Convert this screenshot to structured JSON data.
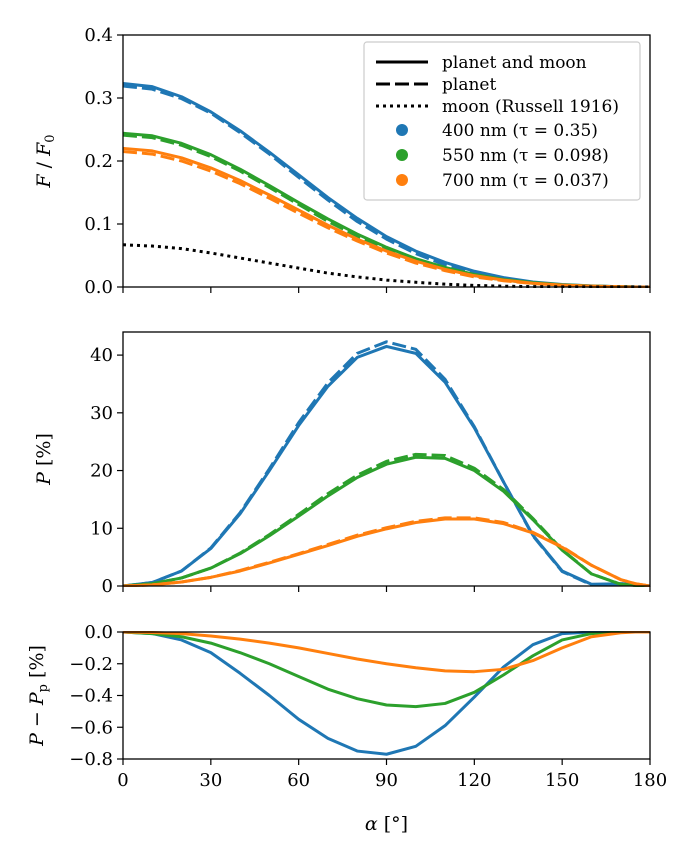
{
  "chart_data": {
    "type": "line",
    "x_axis": {
      "label": "α [°]",
      "lim": [
        0,
        180
      ],
      "ticks": [
        0,
        30,
        60,
        90,
        120,
        150,
        180
      ],
      "tick_labels": [
        "0",
        "30",
        "60",
        "90",
        "120",
        "150",
        "180"
      ]
    },
    "colors": {
      "400": "#1f77b4",
      "550": "#2ca02c",
      "700": "#ff7f0e",
      "moon": "#000000"
    },
    "legend": {
      "location": "top-right",
      "style_entries": [
        {
          "label": "planet and moon",
          "style": "solid"
        },
        {
          "label": "planet",
          "style": "dashed"
        },
        {
          "label": "moon (Russell 1916)",
          "style": "dotted"
        }
      ],
      "color_entries": [
        {
          "label": "400 nm (τ = 0.35)",
          "color": "#1f77b4"
        },
        {
          "label": "550 nm (τ = 0.098)",
          "color": "#2ca02c"
        },
        {
          "label": "700 nm (τ = 0.037)",
          "color": "#ff7f0e"
        }
      ]
    },
    "x": [
      0,
      10,
      20,
      30,
      40,
      50,
      60,
      70,
      80,
      90,
      100,
      110,
      120,
      130,
      140,
      150,
      160,
      170,
      175,
      180
    ],
    "panels": [
      {
        "name": "flux",
        "ylabel": "F / F0",
        "ylim": [
          0,
          0.4
        ],
        "yticks": [
          0.0,
          0.1,
          0.2,
          0.3,
          0.4
        ],
        "ytick_labels": [
          "0.0",
          "0.1",
          "0.2",
          "0.3",
          "0.4"
        ],
        "series": [
          {
            "name": "400 nm planet and moon",
            "color": "400",
            "style": "solid",
            "values": [
              0.323,
              0.318,
              0.302,
              0.278,
              0.248,
              0.214,
              0.178,
              0.142,
              0.109,
              0.08,
              0.057,
              0.039,
              0.025,
              0.015,
              0.008,
              0.004,
              0.0018,
              0.0005,
              0.0002,
              0.0
            ]
          },
          {
            "name": "400 nm planet",
            "color": "400",
            "style": "dashed",
            "values": [
              0.319,
              0.314,
              0.299,
              0.276,
              0.245,
              0.211,
              0.174,
              0.138,
              0.104,
              0.076,
              0.053,
              0.035,
              0.022,
              0.013,
              0.007,
              0.003,
              0.0013,
              0.0004,
              0.0001,
              0.0
            ]
          },
          {
            "name": "550 nm planet and moon",
            "color": "550",
            "style": "solid",
            "values": [
              0.244,
              0.24,
              0.228,
              0.21,
              0.187,
              0.161,
              0.134,
              0.108,
              0.084,
              0.063,
              0.045,
              0.031,
              0.02,
              0.012,
              0.007,
              0.0035,
              0.0015,
              0.0004,
              0.0001,
              0.0
            ]
          },
          {
            "name": "550 nm planet",
            "color": "550",
            "style": "dashed",
            "values": [
              0.241,
              0.237,
              0.225,
              0.207,
              0.184,
              0.158,
              0.131,
              0.104,
              0.081,
              0.06,
              0.043,
              0.029,
              0.018,
              0.011,
              0.006,
              0.003,
              0.0012,
              0.0003,
              0.0001,
              0.0
            ]
          },
          {
            "name": "700 nm planet and moon",
            "color": "700",
            "style": "solid",
            "values": [
              0.22,
              0.216,
              0.205,
              0.189,
              0.169,
              0.146,
              0.122,
              0.098,
              0.076,
              0.057,
              0.041,
              0.028,
              0.018,
              0.011,
              0.006,
              0.003,
              0.0013,
              0.0004,
              0.0001,
              0.0
            ]
          },
          {
            "name": "700 nm planet",
            "color": "700",
            "style": "dashed",
            "values": [
              0.215,
              0.211,
              0.2,
              0.184,
              0.164,
              0.141,
              0.117,
              0.094,
              0.073,
              0.054,
              0.038,
              0.026,
              0.016,
              0.01,
              0.0055,
              0.0027,
              0.0011,
              0.0003,
              0.0001,
              0.0
            ]
          },
          {
            "name": "moon (Russell 1916)",
            "color": "moon",
            "style": "dotted",
            "values": [
              0.067,
              0.065,
              0.061,
              0.054,
              0.046,
              0.038,
              0.03,
              0.022,
              0.016,
              0.011,
              0.0075,
              0.0045,
              0.0025,
              0.0013,
              0.0006,
              0.0002,
              0.0001,
              0.0,
              0.0,
              0.0
            ]
          }
        ]
      },
      {
        "name": "polarization",
        "ylabel": "P [%]",
        "ylim": [
          0,
          44
        ],
        "yticks": [
          0,
          10,
          20,
          30,
          40
        ],
        "ytick_labels": [
          "0",
          "10",
          "20",
          "30",
          "40"
        ],
        "series": [
          {
            "name": "400 nm planet and moon",
            "color": "400",
            "style": "solid",
            "values": [
              0.0,
              0.6,
              2.6,
              6.5,
              12.5,
              20.0,
              27.8,
              34.6,
              39.6,
              41.5,
              40.3,
              35.3,
              27.4,
              18.0,
              8.8,
              2.6,
              0.3,
              0.4,
              0.3,
              0.0
            ]
          },
          {
            "name": "400 nm planet",
            "color": "400",
            "style": "dashed",
            "values": [
              0.0,
              0.6,
              2.6,
              6.6,
              12.7,
              20.3,
              28.3,
              35.2,
              40.3,
              42.3,
              41.0,
              35.8,
              27.6,
              18.0,
              8.7,
              2.5,
              0.2,
              0.4,
              0.3,
              0.0
            ]
          },
          {
            "name": "550 nm planet and moon",
            "color": "550",
            "style": "solid",
            "values": [
              0.0,
              0.4,
              1.4,
              3.1,
              5.6,
              8.7,
              12.1,
              15.6,
              18.8,
              21.1,
              22.3,
              22.1,
              20.0,
              16.4,
              11.5,
              6.2,
              2.1,
              0.3,
              0.1,
              0.0
            ]
          },
          {
            "name": "550 nm planet",
            "color": "550",
            "style": "dashed",
            "values": [
              0.0,
              0.4,
              1.4,
              3.1,
              5.7,
              8.9,
              12.4,
              16.0,
              19.2,
              21.6,
              22.8,
              22.6,
              20.4,
              16.7,
              11.7,
              6.3,
              2.1,
              0.3,
              0.1,
              0.0
            ]
          },
          {
            "name": "700 nm planet and moon",
            "color": "700",
            "style": "solid",
            "values": [
              0.0,
              0.2,
              0.7,
              1.5,
              2.6,
              4.0,
              5.5,
              7.0,
              8.6,
              9.9,
              11.0,
              11.6,
              11.6,
              10.8,
              9.2,
              6.7,
              3.6,
              1.1,
              0.4,
              0.0
            ]
          },
          {
            "name": "700 nm planet",
            "color": "700",
            "style": "dashed",
            "values": [
              0.0,
              0.2,
              0.7,
              1.5,
              2.7,
              4.1,
              5.6,
              7.2,
              8.8,
              10.1,
              11.2,
              11.8,
              11.8,
              11.0,
              9.3,
              6.8,
              3.6,
              1.1,
              0.4,
              0.0
            ]
          }
        ]
      },
      {
        "name": "difference",
        "ylabel": "P − Pp [%]",
        "ylim": [
          -0.8,
          0.0
        ],
        "yticks": [
          -0.8,
          -0.6,
          -0.4,
          -0.2,
          0.0
        ],
        "ytick_labels": [
          "−0.8",
          "−0.6",
          "−0.4",
          "−0.2",
          "0.0"
        ],
        "series": [
          {
            "name": "400 nm difference",
            "color": "400",
            "style": "solid",
            "values": [
              0.0,
              -0.01,
              -0.05,
              -0.13,
              -0.26,
              -0.4,
              -0.55,
              -0.67,
              -0.75,
              -0.77,
              -0.72,
              -0.59,
              -0.41,
              -0.22,
              -0.08,
              -0.01,
              0.0,
              0.0,
              0.0,
              0.0
            ]
          },
          {
            "name": "550 nm difference",
            "color": "550",
            "style": "solid",
            "values": [
              0.0,
              -0.01,
              -0.03,
              -0.07,
              -0.13,
              -0.2,
              -0.28,
              -0.36,
              -0.42,
              -0.46,
              -0.47,
              -0.45,
              -0.38,
              -0.27,
              -0.15,
              -0.05,
              -0.01,
              0.0,
              0.0,
              0.0
            ]
          },
          {
            "name": "700 nm difference",
            "color": "700",
            "style": "solid",
            "values": [
              0.0,
              -0.003,
              -0.01,
              -0.025,
              -0.045,
              -0.07,
              -0.1,
              -0.135,
              -0.17,
              -0.2,
              -0.225,
              -0.245,
              -0.25,
              -0.235,
              -0.18,
              -0.1,
              -0.03,
              -0.005,
              0.0,
              0.0
            ]
          }
        ]
      }
    ]
  }
}
